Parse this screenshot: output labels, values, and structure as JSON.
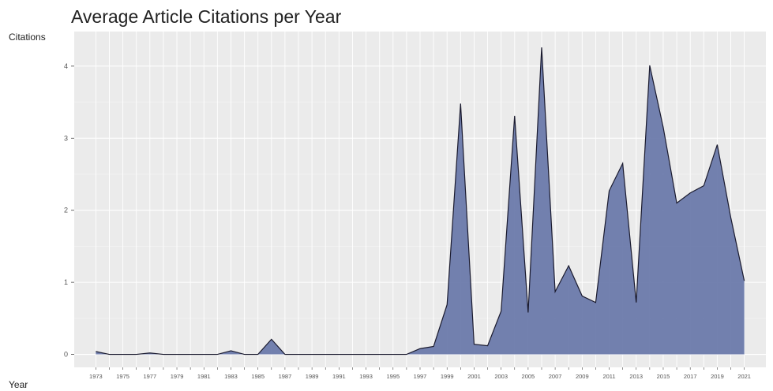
{
  "chart_data": {
    "type": "area",
    "title": "Average Article Citations per Year",
    "xlabel": "Year",
    "ylabel": "Citations",
    "x": [
      1973,
      1974,
      1975,
      1976,
      1977,
      1978,
      1979,
      1980,
      1981,
      1982,
      1983,
      1984,
      1985,
      1986,
      1987,
      1988,
      1989,
      1990,
      1991,
      1992,
      1993,
      1994,
      1995,
      1996,
      1997,
      1998,
      1999,
      2000,
      2001,
      2002,
      2003,
      2004,
      2005,
      2006,
      2007,
      2008,
      2009,
      2010,
      2011,
      2012,
      2013,
      2014,
      2015,
      2016,
      2017,
      2018,
      2019,
      2020,
      2021
    ],
    "y": [
      0.04,
      0.0,
      0.0,
      0.0,
      0.02,
      0.0,
      0.0,
      0.0,
      0.0,
      0.0,
      0.05,
      0.0,
      0.0,
      0.21,
      0.0,
      0.0,
      0.0,
      0.0,
      0.0,
      0.0,
      0.0,
      0.0,
      0.0,
      0.0,
      0.08,
      0.11,
      0.69,
      3.48,
      0.14,
      0.12,
      0.6,
      3.31,
      0.58,
      4.26,
      0.87,
      1.23,
      0.81,
      0.72,
      2.27,
      2.65,
      0.72,
      4.01,
      3.15,
      2.1,
      2.24,
      2.34,
      2.91,
      1.9,
      1.02
    ],
    "x_ticks": [
      "1973",
      "1975",
      "1977",
      "1979",
      "1981",
      "1983",
      "1985",
      "1987",
      "1989",
      "1991",
      "1993",
      "1995",
      "1997",
      "1999",
      "2001",
      "2003",
      "2005",
      "2007",
      "2009",
      "2011",
      "2013",
      "2015",
      "2017",
      "2019",
      "2021"
    ],
    "y_ticks": [
      "0",
      "1",
      "2",
      "3",
      "4"
    ],
    "xlim": [
      1971.4,
      2022.6
    ],
    "ylim": [
      -0.18,
      4.48
    ],
    "grid": true,
    "legend": "none",
    "colors": {
      "fill": "#6b7aab",
      "line": "#1a1a2e",
      "panel": "#ebebeb",
      "grid_major": "#ffffff",
      "grid_minor": "#f5f5f5"
    }
  }
}
